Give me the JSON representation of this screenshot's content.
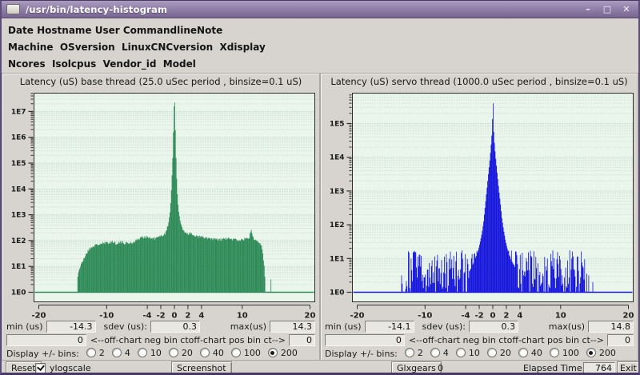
{
  "window": {
    "title": "/usr/bin/latency-histogram",
    "controls": {
      "minimize": "–",
      "maximize": "□",
      "close": "✕"
    }
  },
  "header": {
    "line1": "Date Hostname User CommandlineNote",
    "line2": "Machine  OSversion  LinuxCNCversion  Xdisplay",
    "line3": "Ncores  Isolcpus  Vendor_id  Model"
  },
  "panels": [
    {
      "stats": {
        "min_label": "min (us)",
        "min_value": "-14.3",
        "sdev_label": "sdev (us):",
        "sdev_value": "0.3",
        "max_label": "max(us)",
        "max_value": "14.3"
      },
      "offchart": {
        "neg_value": "0",
        "neg_label": "<--off-chart neg bin ct",
        "pos_label": "off-chart pos bin ct-->",
        "pos_value": "0"
      },
      "bins": {
        "label": "Display +/- bins:",
        "options": [
          "2",
          "4",
          "10",
          "20",
          "40",
          "100",
          "200"
        ],
        "selected": "200"
      }
    },
    {
      "stats": {
        "min_label": "min (us)",
        "min_value": "-14.1",
        "sdev_label": "sdev (us):",
        "sdev_value": "0.3",
        "max_label": "max(us)",
        "max_value": "14.8"
      },
      "offchart": {
        "neg_value": "0",
        "neg_label": "<--off-chart neg bin ct",
        "pos_label": "off-chart pos bin ct-->",
        "pos_value": "0"
      },
      "bins": {
        "label": "Display +/- bins:",
        "options": [
          "2",
          "4",
          "10",
          "20",
          "40",
          "100",
          "200"
        ],
        "selected": "200"
      }
    }
  ],
  "bottom": {
    "reset": "Reset",
    "ylogscale_label": "ylogscale",
    "ylogscale_checked": true,
    "screenshot": "Screenshot",
    "glxgears": "Glxgears",
    "glxgears_value": "0",
    "elapsed_label": "Elapsed Time:",
    "elapsed_value": "764",
    "exit": "Exit"
  },
  "chart_data": [
    {
      "type": "area",
      "title": "Latency (uS) base thread (25.0 uSec period , binsize=0.1 uS)",
      "color": "#2e8a57",
      "bg": "#eaf6ec",
      "grid_minor": "#c2d4c5",
      "grid_major": "#aec5b3",
      "x_range": [
        -20,
        20
      ],
      "bin_width": 0.1,
      "x_ticks": [
        -20,
        -10,
        -4,
        -2,
        0,
        2,
        4,
        10,
        20
      ],
      "y_scale": "log10",
      "y_major_labels": [
        "1E0",
        "1E1",
        "1E2",
        "1E3",
        "1E4",
        "1E5",
        "1E6",
        "1E7"
      ],
      "y_max_log": 7.71,
      "peak": {
        "x": 0,
        "log10_count": 7.46
      },
      "stats": {
        "min_us": -14.3,
        "sdev_us": 0.3,
        "max_us": 14.3,
        "offchart_neg": 0,
        "offchart_pos": 0
      },
      "envelope_log10": [
        [
          -14.4,
          -1
        ],
        [
          -14.32,
          0.5
        ],
        [
          -14.1,
          0.85
        ],
        [
          -13.6,
          1.15
        ],
        [
          -13.0,
          1.5
        ],
        [
          -12.4,
          1.72
        ],
        [
          -11.6,
          1.82
        ],
        [
          -10.8,
          1.88
        ],
        [
          -10.0,
          1.9
        ],
        [
          -9.2,
          1.96
        ],
        [
          -8.6,
          1.9
        ],
        [
          -7.8,
          1.93
        ],
        [
          -7.0,
          1.9
        ],
        [
          -6.2,
          1.92
        ],
        [
          -5.4,
          2.05
        ],
        [
          -4.8,
          2.12
        ],
        [
          -4.2,
          2.16
        ],
        [
          -3.6,
          2.1
        ],
        [
          -3.0,
          2.08
        ],
        [
          -2.4,
          2.12
        ],
        [
          -1.8,
          2.2
        ],
        [
          -1.3,
          2.3
        ],
        [
          -0.9,
          2.6
        ],
        [
          -0.6,
          3.2
        ],
        [
          -0.4,
          4.2
        ],
        [
          -0.25,
          5.2
        ],
        [
          -0.12,
          6.5
        ],
        [
          -0.04,
          7.3
        ],
        [
          0.04,
          7.46
        ],
        [
          0.12,
          6.6
        ],
        [
          0.25,
          5.2
        ],
        [
          0.4,
          4.0
        ],
        [
          0.6,
          3.2
        ],
        [
          0.9,
          2.7
        ],
        [
          1.3,
          2.4
        ],
        [
          1.8,
          2.3
        ],
        [
          2.4,
          2.25
        ],
        [
          3.0,
          2.2
        ],
        [
          3.8,
          2.15
        ],
        [
          4.6,
          2.1
        ],
        [
          5.6,
          2.06
        ],
        [
          6.6,
          2.03
        ],
        [
          7.6,
          2.08
        ],
        [
          8.6,
          2.05
        ],
        [
          9.6,
          2.02
        ],
        [
          10.4,
          2.06
        ],
        [
          11.0,
          2.1
        ],
        [
          11.35,
          2.42
        ],
        [
          11.7,
          2.1
        ],
        [
          12.2,
          2.0
        ],
        [
          12.7,
          1.92
        ],
        [
          13.0,
          1.6
        ],
        [
          13.25,
          1.0
        ],
        [
          13.42,
          0.3
        ],
        [
          13.5,
          -1
        ]
      ],
      "noise": {
        "region": [
          -14.3,
          13.4
        ],
        "amp": 0.06,
        "max_h": 2.5,
        "seed": 20
      },
      "isolated_bins": [
        [
          14.25,
          0.5
        ]
      ]
    },
    {
      "type": "area",
      "title": "Latency (uS) servo thread (1000.0 uSec period , binsize=0.1 uS)",
      "color": "#1616dd",
      "bg": "#eaf6ec",
      "grid_minor": "#c2d4c5",
      "grid_major": "#aec5b3",
      "x_range": [
        -20,
        20
      ],
      "bin_width": 0.1,
      "x_ticks": [
        -20,
        -10,
        -4,
        -2,
        0,
        2,
        4,
        10,
        20
      ],
      "y_scale": "log10",
      "y_major_labels": [
        "1E0",
        "1E1",
        "1E2",
        "1E3",
        "1E4",
        "1E5"
      ],
      "y_max_log": 5.9,
      "peak": {
        "x": 0,
        "log10_count": 5.72
      },
      "stats": {
        "min_us": -14.1,
        "sdev_us": 0.3,
        "max_us": 14.8,
        "offchart_neg": 0,
        "offchart_pos": 0
      },
      "envelope_log10": [
        [
          -3.5,
          0.6
        ],
        [
          -3.0,
          0.8
        ],
        [
          -2.6,
          1.0
        ],
        [
          -2.2,
          1.2
        ],
        [
          -1.9,
          1.45
        ],
        [
          -1.6,
          1.75
        ],
        [
          -1.35,
          2.1
        ],
        [
          -1.15,
          2.5
        ],
        [
          -0.95,
          2.9
        ],
        [
          -0.8,
          3.2
        ],
        [
          -0.65,
          3.5
        ],
        [
          -0.5,
          3.8
        ],
        [
          -0.38,
          4.05
        ],
        [
          -0.28,
          4.3
        ],
        [
          -0.18,
          4.55
        ],
        [
          -0.1,
          4.8
        ],
        [
          -0.04,
          5.2
        ],
        [
          0.04,
          5.72
        ],
        [
          0.1,
          5.0
        ],
        [
          0.18,
          4.6
        ],
        [
          0.28,
          4.35
        ],
        [
          0.38,
          4.1
        ],
        [
          0.5,
          3.85
        ],
        [
          0.65,
          3.55
        ],
        [
          0.8,
          3.25
        ],
        [
          0.95,
          2.95
        ],
        [
          1.15,
          2.6
        ],
        [
          1.35,
          2.2
        ],
        [
          1.6,
          1.85
        ],
        [
          1.9,
          1.5
        ],
        [
          2.2,
          1.25
        ],
        [
          2.6,
          1.0
        ],
        [
          3.0,
          0.85
        ],
        [
          3.5,
          0.65
        ]
      ],
      "noise_floor": {
        "region": [
          -12.9,
          13.6
        ],
        "min": 0.1,
        "max": 1.25,
        "dropout": 0.1,
        "seed": 5
      },
      "isolated_bins": [
        [
          -13.5,
          0.5
        ],
        [
          -13.3,
          0.25
        ],
        [
          13.9,
          0.55
        ],
        [
          14.15,
          0.5
        ],
        [
          14.8,
          0.3
        ]
      ]
    }
  ]
}
